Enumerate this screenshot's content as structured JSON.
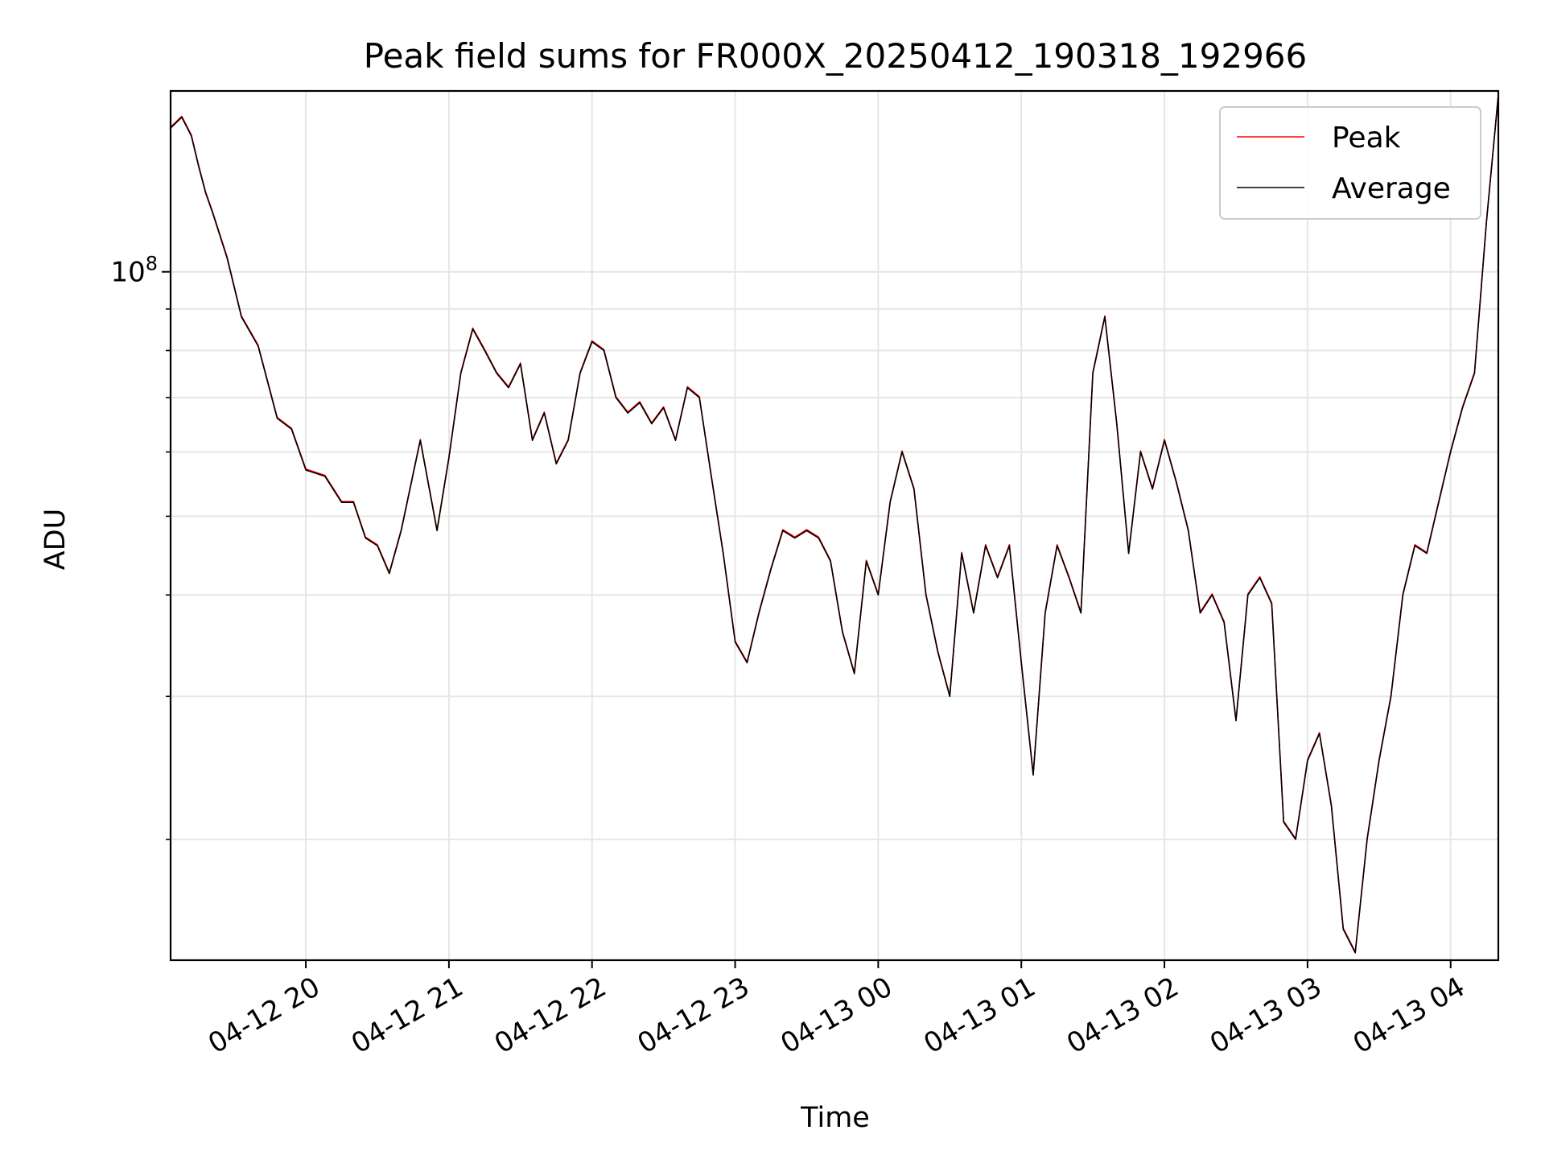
{
  "chart_data": {
    "type": "line",
    "title": "Peak field sums for FR000X_20250412_190318_192966",
    "xlabel": "Time",
    "ylabel": "ADU",
    "y_scale": "log",
    "ylim": [
      14200000,
      167000000
    ],
    "xlim": [
      "2025-04-12 19:03:18",
      "2025-04-13 04:20:00"
    ],
    "x_ticks": [
      "04-12 20",
      "04-12 21",
      "04-12 22",
      "04-12 23",
      "04-13 00",
      "04-13 01",
      "04-13 02",
      "04-13 03",
      "04-13 04"
    ],
    "y_ticks": [
      {
        "value": 100000000,
        "base": "10",
        "exponent": "8"
      }
    ],
    "grid": true,
    "legend_position": "upper right",
    "colors": {
      "peak": "#ff0000",
      "average": "#000000",
      "grid": "#e6e6e6"
    },
    "series": [
      {
        "name": "Peak"
      },
      {
        "name": "Average"
      }
    ],
    "x": [
      "04-12 19:03",
      "04-12 19:08",
      "04-12 19:12",
      "04-12 19:15",
      "04-12 19:18",
      "04-12 19:21",
      "04-12 19:27",
      "04-12 19:33",
      "04-12 19:40",
      "04-12 19:48",
      "04-12 19:54",
      "04-12 20:00",
      "04-12 20:08",
      "04-12 20:15",
      "04-12 20:20",
      "04-12 20:25",
      "04-12 20:30",
      "04-12 20:35",
      "04-12 20:40",
      "04-12 20:48",
      "04-12 20:55",
      "04-12 21:00",
      "04-12 21:05",
      "04-12 21:10",
      "04-12 21:15",
      "04-12 21:20",
      "04-12 21:25",
      "04-12 21:30",
      "04-12 21:35",
      "04-12 21:40",
      "04-12 21:45",
      "04-12 21:50",
      "04-12 21:55",
      "04-12 22:00",
      "04-12 22:05",
      "04-12 22:10",
      "04-12 22:15",
      "04-12 22:20",
      "04-12 22:25",
      "04-12 22:30",
      "04-12 22:35",
      "04-12 22:40",
      "04-12 22:45",
      "04-12 22:50",
      "04-12 22:55",
      "04-12 23:00",
      "04-12 23:05",
      "04-12 23:10",
      "04-12 23:15",
      "04-12 23:20",
      "04-12 23:25",
      "04-12 23:30",
      "04-12 23:35",
      "04-12 23:40",
      "04-12 23:45",
      "04-12 23:50",
      "04-12 23:55",
      "04-13 00:00",
      "04-13 00:05",
      "04-13 00:10",
      "04-13 00:15",
      "04-13 00:20",
      "04-13 00:25",
      "04-13 00:30",
      "04-13 00:35",
      "04-13 00:40",
      "04-13 00:45",
      "04-13 00:50",
      "04-13 00:55",
      "04-13 01:00",
      "04-13 01:05",
      "04-13 01:10",
      "04-13 01:15",
      "04-13 01:20",
      "04-13 01:25",
      "04-13 01:30",
      "04-13 01:35",
      "04-13 01:40",
      "04-13 01:45",
      "04-13 01:50",
      "04-13 01:55",
      "04-13 02:00",
      "04-13 02:05",
      "04-13 02:10",
      "04-13 02:15",
      "04-13 02:20",
      "04-13 02:25",
      "04-13 02:30",
      "04-13 02:35",
      "04-13 02:40",
      "04-13 02:45",
      "04-13 02:50",
      "04-13 02:55",
      "04-13 03:00",
      "04-13 03:05",
      "04-13 03:10",
      "04-13 03:15",
      "04-13 03:20",
      "04-13 03:25",
      "04-13 03:30",
      "04-13 03:35",
      "04-13 03:40",
      "04-13 03:45",
      "04-13 03:50",
      "04-13 03:55",
      "04-13 04:00",
      "04-13 04:05",
      "04-13 04:10",
      "04-13 04:15",
      "04-13 04:20"
    ],
    "values": [
      150000000,
      155000000,
      147000000,
      135000000,
      125000000,
      118000000,
      104000000,
      88000000,
      81000000,
      66000000,
      64000000,
      57000000,
      56000000,
      52000000,
      52000000,
      47000000,
      46000000,
      42500000,
      48000000,
      62000000,
      48000000,
      59000000,
      75000000,
      85000000,
      80000000,
      75000000,
      72000000,
      77000000,
      62000000,
      67000000,
      58000000,
      62000000,
      75000000,
      82000000,
      80000000,
      70000000,
      67000000,
      69000000,
      65000000,
      68000000,
      62000000,
      72000000,
      70000000,
      56000000,
      45000000,
      35000000,
      33000000,
      38000000,
      43000000,
      48000000,
      47000000,
      48000000,
      47000000,
      44000000,
      36000000,
      32000000,
      44000000,
      40000000,
      52000000,
      60000000,
      54000000,
      40000000,
      34000000,
      30000000,
      45000000,
      38000000,
      46000000,
      42000000,
      46000000,
      33000000,
      24000000,
      38000000,
      46000000,
      42000000,
      38000000,
      75000000,
      88000000,
      65000000,
      45000000,
      60000000,
      54000000,
      62000000,
      55000000,
      48000000,
      38000000,
      40000000,
      37000000,
      28000000,
      40000000,
      42000000,
      39000000,
      21000000,
      20000000,
      25000000,
      27000000,
      22000000,
      15500000,
      14500000,
      20000000,
      25000000,
      30000000,
      40000000,
      46000000,
      45000000,
      52000000,
      60000000,
      68000000,
      75000000,
      115000000,
      165000000
    ]
  }
}
